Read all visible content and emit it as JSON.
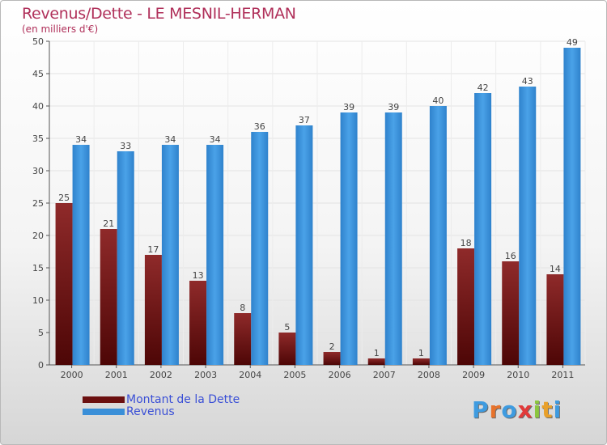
{
  "chart_data": {
    "type": "bar",
    "title": "Revenus/Dette - LE MESNIL-HERMAN",
    "subtitle": "(en milliers d'€)",
    "categories": [
      "2000",
      "2001",
      "2002",
      "2003",
      "2004",
      "2005",
      "2006",
      "2007",
      "2008",
      "2009",
      "2010",
      "2011"
    ],
    "series": [
      {
        "name": "Montant de la Dette",
        "color": "#6b1010",
        "values": [
          25,
          21,
          17,
          13,
          8,
          5,
          2,
          1,
          1,
          18,
          16,
          14
        ]
      },
      {
        "name": "Revenus",
        "color": "#3a8fd8",
        "values": [
          34,
          33,
          34,
          34,
          36,
          37,
          39,
          39,
          40,
          42,
          43,
          49
        ]
      }
    ],
    "ylim": [
      0,
      50
    ],
    "yticks": [
      0,
      5,
      10,
      15,
      20,
      25,
      30,
      35,
      40,
      45,
      50
    ],
    "grid": true,
    "legend_position": "bottom-left"
  },
  "brand": {
    "letters": [
      "P",
      "r",
      "o",
      "x",
      "i",
      "t",
      "i"
    ],
    "colors": [
      "#3e9be0",
      "#e8722a",
      "#3e9be0",
      "#e23a3a",
      "#8cc63f",
      "#e8a02a",
      "#3e9be0"
    ]
  }
}
